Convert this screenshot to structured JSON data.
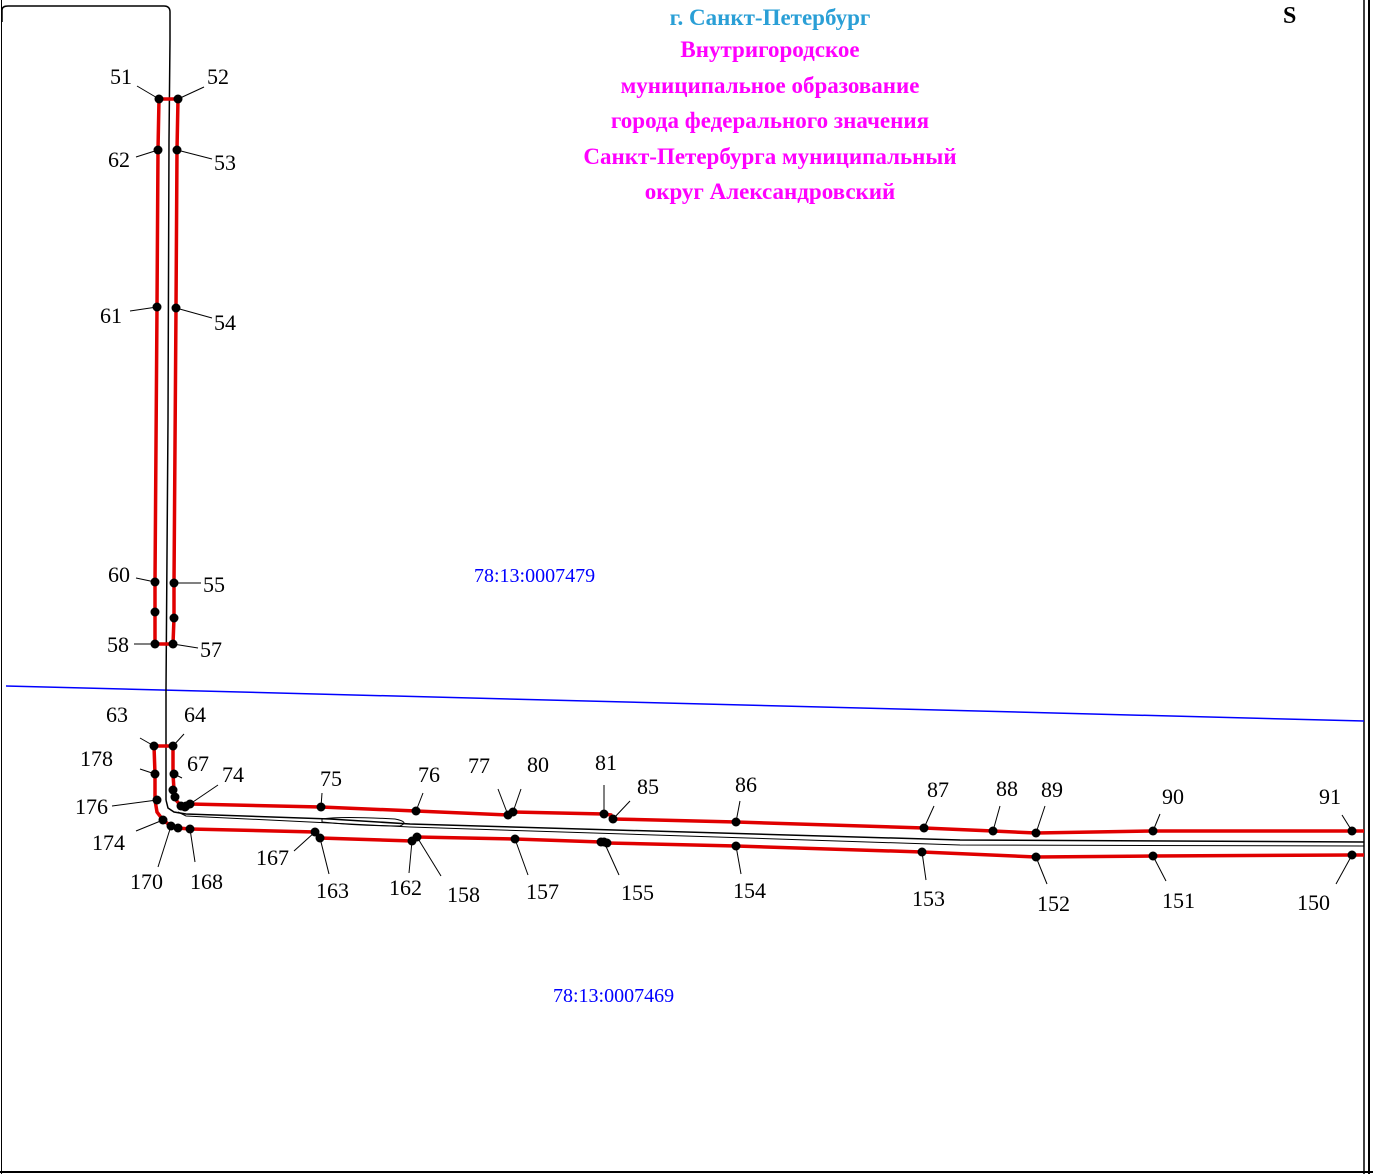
{
  "title": {
    "city": "г. Санкт-Петербург",
    "municipality_lines": [
      "Внутригородское",
      "муниципальное образование",
      "города федерального значения",
      "Санкт-Петербурга муниципальный",
      "округ Александровский"
    ],
    "city_color": "#2a9fd6",
    "municipality_color": "#ff00ff"
  },
  "north_marker": "S",
  "cadastral_blocks": [
    {
      "label": "78:13:0007479"
    },
    {
      "label": "78:13:0007469"
    }
  ],
  "colors": {
    "boundary_red": "#e00000",
    "quarter_line_blue": "#0000ff",
    "outline_black": "#000000"
  },
  "points": [
    {
      "label": "51"
    },
    {
      "label": "52"
    },
    {
      "label": "62"
    },
    {
      "label": "53"
    },
    {
      "label": "61"
    },
    {
      "label": "54"
    },
    {
      "label": "60"
    },
    {
      "label": "55"
    },
    {
      "label": "58"
    },
    {
      "label": "57"
    },
    {
      "label": "63"
    },
    {
      "label": "64"
    },
    {
      "label": "178"
    },
    {
      "label": "67"
    },
    {
      "label": "74"
    },
    {
      "label": "176"
    },
    {
      "label": "174"
    },
    {
      "label": "170"
    },
    {
      "label": "168"
    },
    {
      "label": "75"
    },
    {
      "label": "76"
    },
    {
      "label": "77"
    },
    {
      "label": "80"
    },
    {
      "label": "81"
    },
    {
      "label": "85"
    },
    {
      "label": "86"
    },
    {
      "label": "87"
    },
    {
      "label": "88"
    },
    {
      "label": "89"
    },
    {
      "label": "90"
    },
    {
      "label": "91"
    },
    {
      "label": "167"
    },
    {
      "label": "163"
    },
    {
      "label": "162"
    },
    {
      "label": "158"
    },
    {
      "label": "157"
    },
    {
      "label": "155"
    },
    {
      "label": "154"
    },
    {
      "label": "153"
    },
    {
      "label": "152"
    },
    {
      "label": "151"
    },
    {
      "label": "150"
    }
  ]
}
